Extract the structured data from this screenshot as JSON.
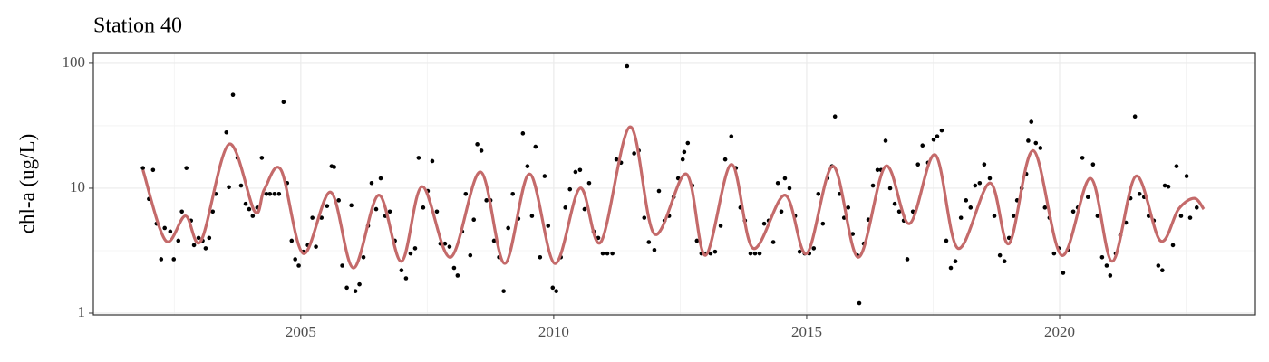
{
  "chart_data": {
    "type": "scatter",
    "title": "Station 40",
    "y_label": "chl-a (ug/L)",
    "log_y": true,
    "grid": true,
    "xlim": [
      2000.9,
      2023.87
    ],
    "ylim": [
      0.967,
      120
    ],
    "xticks": [
      2005,
      2010,
      2015,
      2020
    ],
    "yticks": [
      1,
      10,
      100
    ],
    "series": [
      {
        "type": "scatter",
        "color": "#000000",
        "x": [
          2001.88,
          2002.0,
          2002.08,
          2002.15,
          2002.24,
          2002.31,
          2002.42,
          2002.49,
          2002.58,
          2002.65,
          2002.74,
          2002.83,
          2002.89,
          2002.98,
          2003.06,
          2003.12,
          2003.19,
          2003.26,
          2003.32,
          2003.53,
          2003.58,
          2003.66,
          2003.75,
          2003.82,
          2003.91,
          2003.98,
          2004.05,
          2004.14,
          2004.23,
          2004.32,
          2004.39,
          2004.48,
          2004.57,
          2004.66,
          2004.73,
          2004.82,
          2004.89,
          2004.96,
          2005.05,
          2005.14,
          2005.23,
          2005.3,
          2005.41,
          2005.52,
          2005.61,
          2005.66,
          2005.75,
          2005.82,
          2005.91,
          2006.0,
          2006.08,
          2006.16,
          2006.24,
          2006.33,
          2006.4,
          2006.49,
          2006.58,
          2006.67,
          2006.76,
          2006.86,
          2006.99,
          2007.08,
          2007.17,
          2007.26,
          2007.33,
          2007.42,
          2007.51,
          2007.6,
          2007.69,
          2007.76,
          2007.85,
          2007.94,
          2008.03,
          2008.1,
          2008.19,
          2008.26,
          2008.35,
          2008.42,
          2008.49,
          2008.57,
          2008.67,
          2008.75,
          2008.82,
          2008.92,
          2009.01,
          2009.1,
          2009.19,
          2009.3,
          2009.39,
          2009.48,
          2009.57,
          2009.64,
          2009.73,
          2009.82,
          2009.89,
          2009.98,
          2010.05,
          2010.14,
          2010.23,
          2010.32,
          2010.43,
          2010.52,
          2010.61,
          2010.7,
          2010.79,
          2010.88,
          2010.97,
          2011.06,
          2011.16,
          2011.24,
          2011.33,
          2011.45,
          2011.59,
          2011.68,
          2011.79,
          2011.88,
          2011.99,
          2012.08,
          2012.19,
          2012.28,
          2012.37,
          2012.46,
          2012.55,
          2012.58,
          2012.65,
          2012.74,
          2012.83,
          2012.92,
          2013.01,
          2013.1,
          2013.19,
          2013.3,
          2013.39,
          2013.51,
          2013.6,
          2013.69,
          2013.78,
          2013.89,
          2013.98,
          2014.07,
          2014.16,
          2014.25,
          2014.34,
          2014.43,
          2014.5,
          2014.57,
          2014.66,
          2014.77,
          2014.86,
          2014.96,
          2015.05,
          2015.14,
          2015.23,
          2015.32,
          2015.41,
          2015.5,
          2015.56,
          2015.65,
          2015.74,
          2015.82,
          2015.91,
          2016.0,
          2016.04,
          2016.13,
          2016.22,
          2016.31,
          2016.4,
          2016.47,
          2016.56,
          2016.65,
          2016.74,
          2016.83,
          2016.92,
          2016.99,
          2017.1,
          2017.2,
          2017.29,
          2017.4,
          2017.51,
          2017.58,
          2017.67,
          2017.76,
          2017.85,
          2017.94,
          2018.05,
          2018.15,
          2018.24,
          2018.33,
          2018.42,
          2018.51,
          2018.62,
          2018.71,
          2018.82,
          2018.91,
          2019.0,
          2019.09,
          2019.16,
          2019.25,
          2019.34,
          2019.38,
          2019.44,
          2019.53,
          2019.62,
          2019.71,
          2019.8,
          2019.89,
          2019.98,
          2020.07,
          2020.16,
          2020.27,
          2020.36,
          2020.45,
          2020.56,
          2020.66,
          2020.75,
          2020.84,
          2020.93,
          2021.0,
          2021.11,
          2021.2,
          2021.31,
          2021.4,
          2021.49,
          2021.58,
          2021.67,
          2021.76,
          2021.86,
          2021.95,
          2022.03,
          2022.08,
          2022.15,
          2022.24,
          2022.31,
          2022.4,
          2022.51,
          2022.58,
          2022.71
        ],
        "values": [
          14.5,
          8.2,
          14,
          5.2,
          2.7,
          4.8,
          4.5,
          2.7,
          3.8,
          6.5,
          14.5,
          5.5,
          3.5,
          4,
          3.8,
          3.3,
          4,
          6.5,
          9,
          28,
          10.2,
          56,
          17.5,
          10.5,
          7.5,
          6.8,
          6,
          7,
          17.5,
          9,
          9,
          9,
          9,
          49,
          11,
          3.8,
          2.7,
          2.4,
          3.1,
          3.5,
          5.8,
          3.4,
          5.8,
          7.2,
          15,
          14.8,
          8,
          2.4,
          1.6,
          7.3,
          1.5,
          1.7,
          2.8,
          5,
          11,
          6.8,
          12,
          6,
          6.5,
          3.8,
          2.2,
          1.9,
          3,
          3.3,
          17.5,
          7,
          9.5,
          16.5,
          6.5,
          3.6,
          3.6,
          3.4,
          2.3,
          2,
          4.5,
          9,
          2.9,
          5.6,
          22.5,
          20,
          8,
          8,
          3.8,
          2.8,
          1.5,
          4.8,
          9,
          5.7,
          27.5,
          15,
          6,
          21.5,
          2.8,
          12.5,
          5,
          1.6,
          1.5,
          2.8,
          7,
          9.8,
          13.5,
          14,
          6.8,
          11,
          4.5,
          4,
          3,
          3,
          3,
          17,
          16,
          95,
          19,
          20,
          5.8,
          3.7,
          3.2,
          9.5,
          5.5,
          6,
          8.5,
          12,
          17,
          19.5,
          23,
          10.5,
          3.8,
          3,
          3,
          3,
          3.1,
          5,
          17,
          26,
          14.5,
          7,
          5.5,
          3,
          3,
          3,
          5.2,
          5.5,
          3.7,
          11,
          6.5,
          12,
          10,
          6,
          3.1,
          3,
          3,
          3.3,
          9,
          5.2,
          12,
          15,
          37.5,
          9,
          5.8,
          7,
          4.3,
          2.9,
          1.2,
          3.6,
          5.6,
          10.5,
          14,
          14,
          24,
          10,
          7.5,
          6.5,
          5.5,
          2.7,
          6.5,
          15.5,
          22,
          16,
          24.5,
          26,
          29,
          3.8,
          2.3,
          2.6,
          5.8,
          8,
          7,
          10.5,
          11,
          15.5,
          12,
          6,
          2.9,
          2.6,
          4,
          6,
          8,
          10,
          13,
          24,
          34,
          23,
          21,
          7,
          5.8,
          3,
          3.3,
          2.1,
          3.2,
          6.5,
          7,
          17.5,
          8.5,
          15.5,
          6,
          2.8,
          2.4,
          2,
          3,
          4.2,
          5.3,
          8.3,
          37.5,
          9,
          8.5,
          6,
          5.5,
          2.4,
          2.2,
          10.5,
          10.3,
          3.5,
          15,
          6,
          12.5,
          5.8,
          7
        ]
      },
      {
        "type": "line",
        "color": "#c46a6a",
        "x": [
          2001.88,
          2002.33,
          2002.72,
          2003.03,
          2003.58,
          2004.09,
          2004.28,
          2004.61,
          2005.05,
          2005.59,
          2006.04,
          2006.54,
          2006.99,
          2007.4,
          2007.96,
          2008.55,
          2009.03,
          2009.52,
          2010.02,
          2010.52,
          2010.93,
          2011.51,
          2011.99,
          2012.62,
          2013.0,
          2013.51,
          2013.94,
          2014.57,
          2015.0,
          2015.52,
          2016.02,
          2016.56,
          2017.03,
          2017.54,
          2017.99,
          2018.62,
          2019.0,
          2019.48,
          2020.04,
          2020.61,
          2021.04,
          2021.51,
          2021.99,
          2022.35,
          2022.66,
          2022.85
        ],
        "values": [
          14,
          3.8,
          6,
          3.8,
          22.5,
          6.5,
          9.8,
          14,
          3,
          9.3,
          2.3,
          8.8,
          2.6,
          10.3,
          2.8,
          13.5,
          2.5,
          13,
          2.5,
          10,
          3.7,
          31,
          4.3,
          13,
          2.9,
          15.5,
          3.3,
          8.8,
          3,
          15,
          2.8,
          15,
          5.2,
          18.5,
          3.3,
          11,
          3.6,
          20,
          2.9,
          12,
          2.6,
          12.5,
          3.8,
          6.8,
          8.3,
          6.8
        ]
      }
    ]
  }
}
